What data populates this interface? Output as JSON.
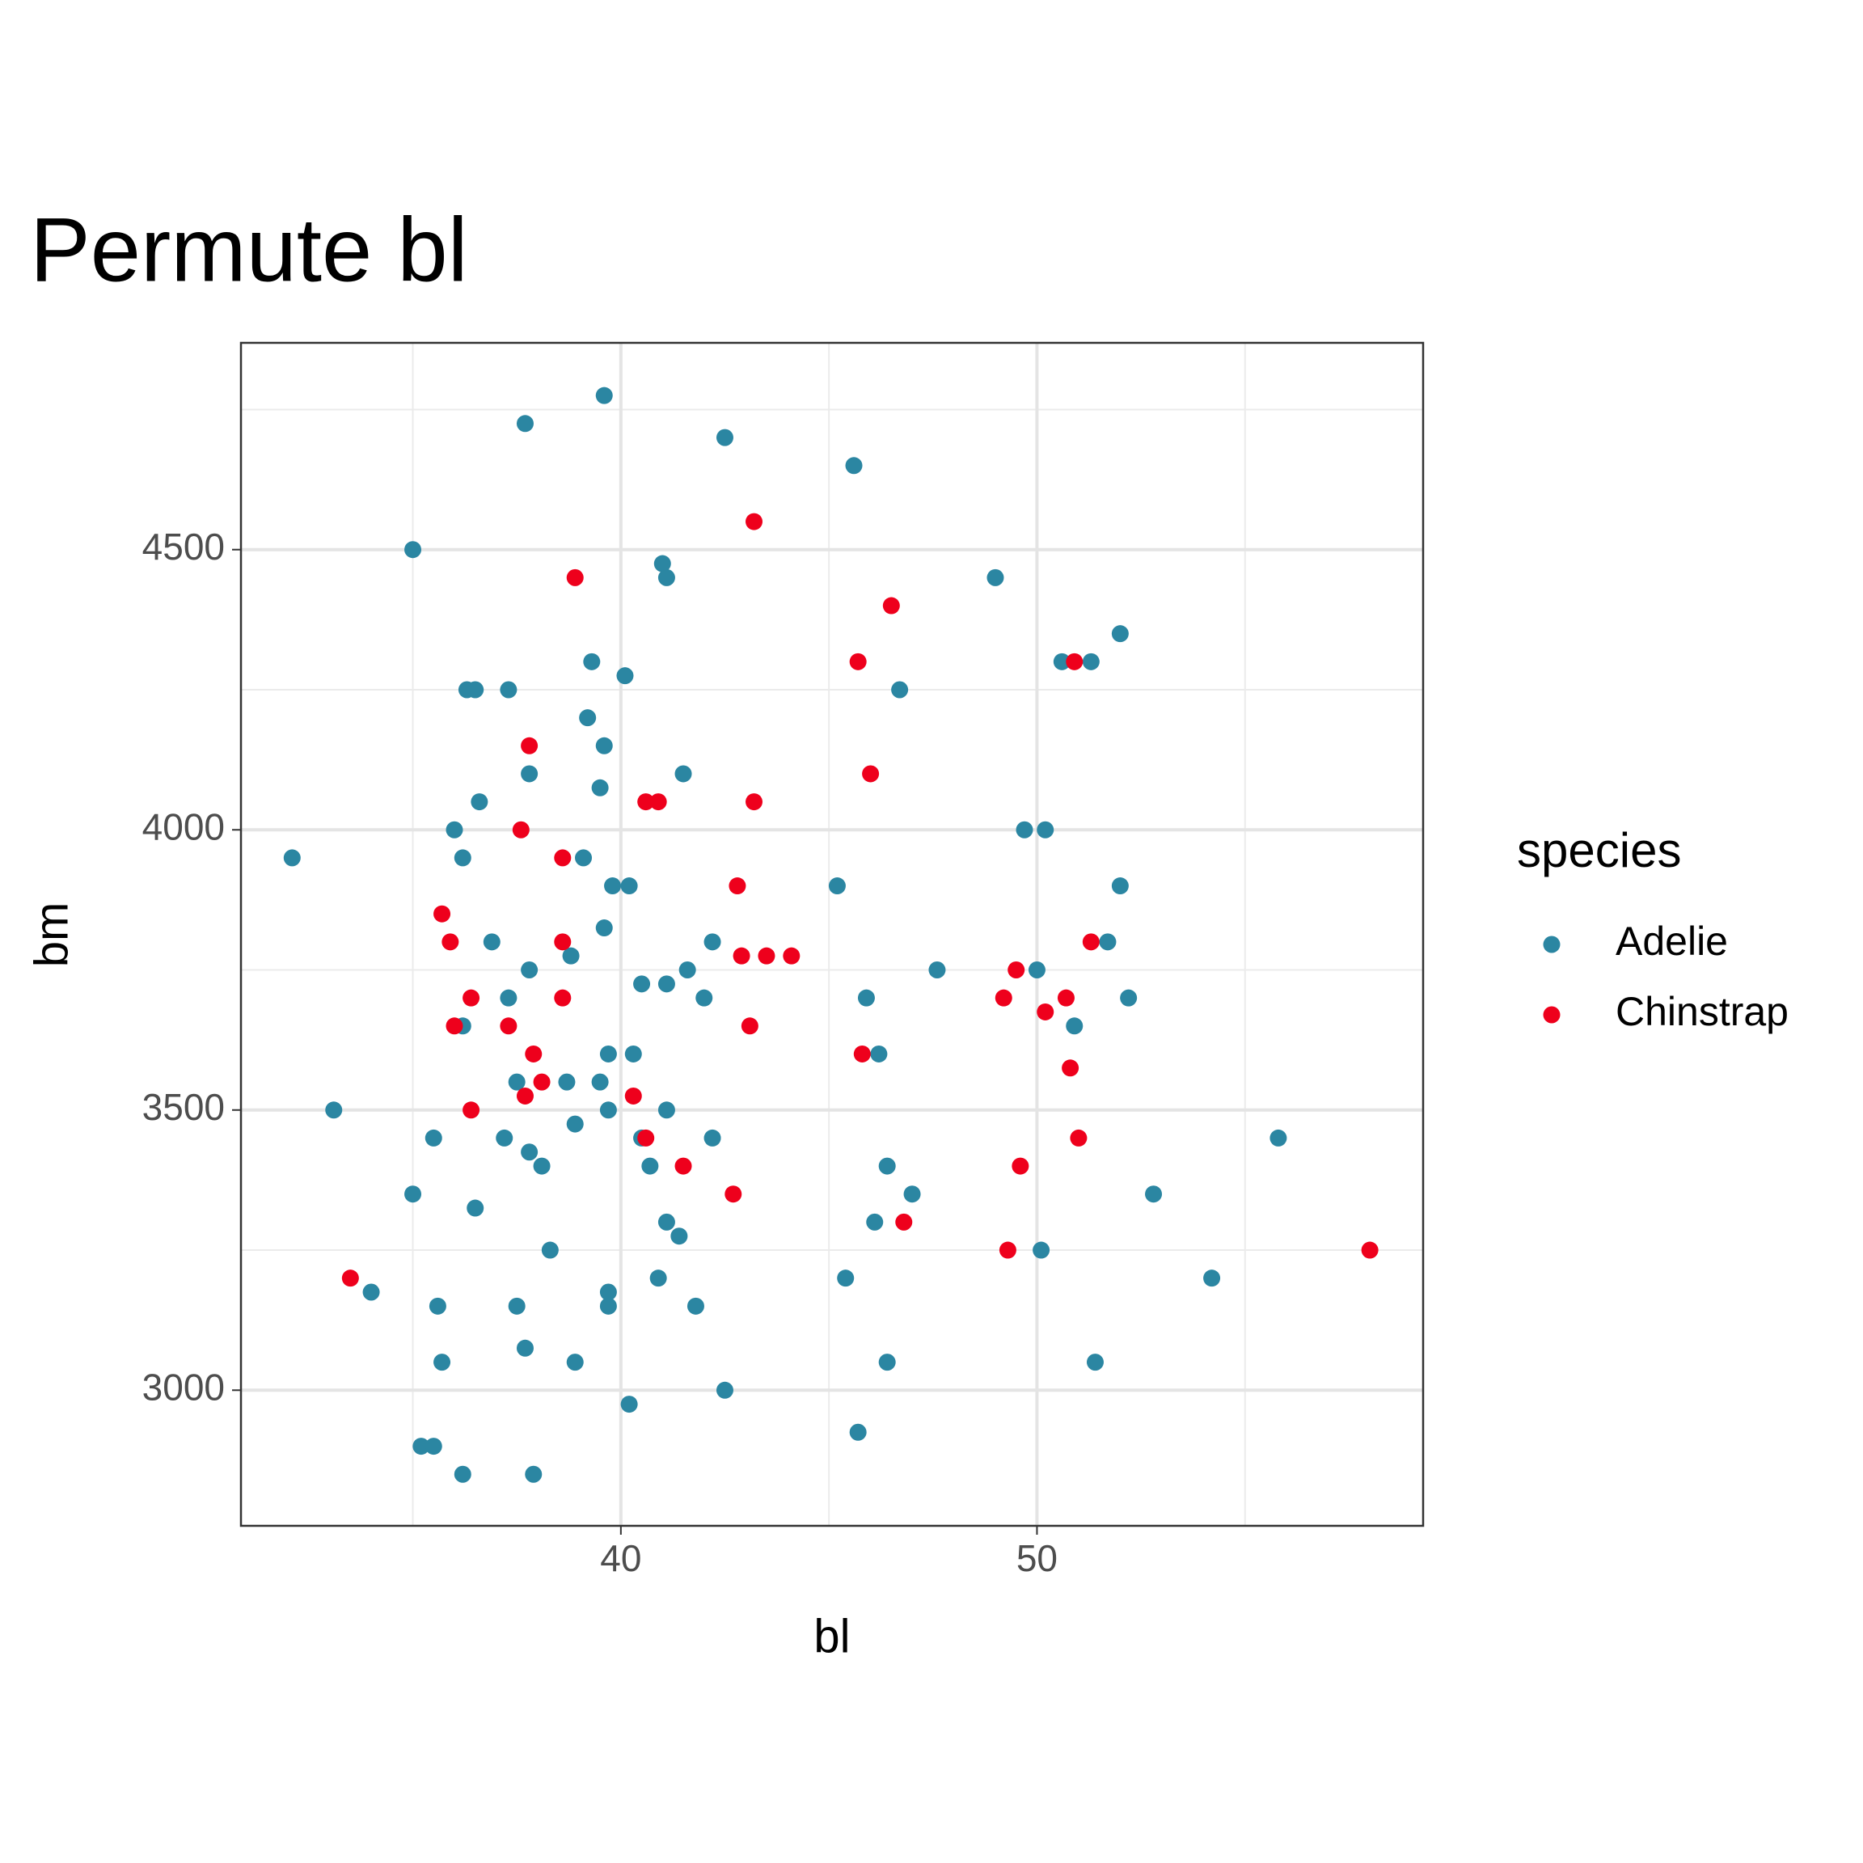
{
  "chart_data": {
    "type": "scatter",
    "title": "Permute bl",
    "x_label": "bl",
    "y_label": "bm",
    "legend_title": "species",
    "xlim": [
      30.87,
      59.28
    ],
    "ylim": [
      2758,
      4869
    ],
    "xticks": [
      40,
      50
    ],
    "yticks": [
      3000,
      3500,
      4000,
      4500
    ],
    "xminor": [
      35,
      45,
      55
    ],
    "yminor": [
      3250,
      3750,
      4250,
      4750
    ],
    "grid": true,
    "legend": "right",
    "series": [
      {
        "name": "Adelie",
        "color": "#2b86a2",
        "x": [
          39.6,
          37.7,
          42.5,
          45.6,
          35.0,
          41.0,
          41.1,
          49.0,
          52.0,
          39.3,
          50.6,
          51.3,
          40.1,
          36.3,
          36.5,
          37.3,
          46.7,
          39.2,
          39.6,
          41.5,
          37.8,
          39.5,
          36.6,
          36.0,
          49.7,
          50.2,
          32.1,
          36.2,
          39.1,
          39.8,
          40.2,
          45.2,
          52.0,
          36.9,
          42.2,
          51.7,
          39.6,
          38.8,
          37.8,
          41.6,
          47.6,
          50.0,
          40.5,
          41.1,
          37.3,
          42.0,
          45.9,
          52.2,
          36.2,
          50.9,
          39.7,
          40.3,
          46.2,
          37.5,
          38.7,
          39.5,
          33.1,
          39.7,
          41.1,
          35.5,
          37.2,
          40.5,
          42.2,
          55.8,
          38.9,
          37.8,
          38.1,
          40.7,
          46.4,
          35.0,
          47.0,
          52.8,
          36.5,
          41.1,
          46.1,
          41.4,
          38.3,
          50.1,
          40.9,
          45.4,
          54.2,
          34.0,
          39.7,
          35.6,
          37.5,
          39.7,
          41.8,
          37.7,
          35.7,
          38.9,
          46.4,
          51.4,
          42.5,
          40.2,
          45.7,
          35.2,
          35.5,
          36.2,
          37.9
        ],
        "y": [
          4775,
          4725,
          4700,
          4650,
          4500,
          4475,
          4450,
          4450,
          4350,
          4300,
          4300,
          4300,
          4275,
          4250,
          4250,
          4250,
          4250,
          4200,
          4150,
          4100,
          4100,
          4075,
          4050,
          4000,
          4000,
          4000,
          3950,
          3950,
          3950,
          3900,
          3900,
          3900,
          3900,
          3800,
          3800,
          3800,
          3825,
          3775,
          3750,
          3750,
          3750,
          3750,
          3725,
          3725,
          3700,
          3700,
          3700,
          3700,
          3650,
          3650,
          3600,
          3600,
          3600,
          3550,
          3550,
          3550,
          3500,
          3500,
          3500,
          3450,
          3450,
          3450,
          3450,
          3450,
          3475,
          3425,
          3400,
          3400,
          3400,
          3350,
          3350,
          3350,
          3325,
          3300,
          3300,
          3275,
          3250,
          3250,
          3200,
          3200,
          3200,
          3175,
          3175,
          3150,
          3150,
          3150,
          3150,
          3075,
          3050,
          3050,
          3050,
          3050,
          3000,
          2975,
          2925,
          2900,
          2900,
          2850,
          2850
        ]
      },
      {
        "name": "Chinstrap",
        "color": "#ee001c",
        "x": [
          43.2,
          38.9,
          46.5,
          45.7,
          50.9,
          37.8,
          46.0,
          40.6,
          40.9,
          43.2,
          37.6,
          38.6,
          42.8,
          35.7,
          35.9,
          38.6,
          51.3,
          42.9,
          43.5,
          44.1,
          49.5,
          36.4,
          38.6,
          49.2,
          50.7,
          50.2,
          36.0,
          37.3,
          43.1,
          37.9,
          45.8,
          50.8,
          38.1,
          37.7,
          40.3,
          36.4,
          40.6,
          51.0,
          41.5,
          49.6,
          42.7,
          46.8,
          49.3,
          58.0,
          33.5
        ],
        "y": [
          4550,
          4450,
          4400,
          4300,
          4300,
          4150,
          4100,
          4050,
          4050,
          4050,
          4000,
          3950,
          3900,
          3850,
          3800,
          3800,
          3800,
          3775,
          3775,
          3775,
          3750,
          3700,
          3700,
          3700,
          3700,
          3675,
          3650,
          3650,
          3650,
          3600,
          3600,
          3575,
          3550,
          3525,
          3525,
          3500,
          3450,
          3450,
          3400,
          3400,
          3350,
          3300,
          3250,
          3250,
          3200
        ]
      }
    ]
  }
}
